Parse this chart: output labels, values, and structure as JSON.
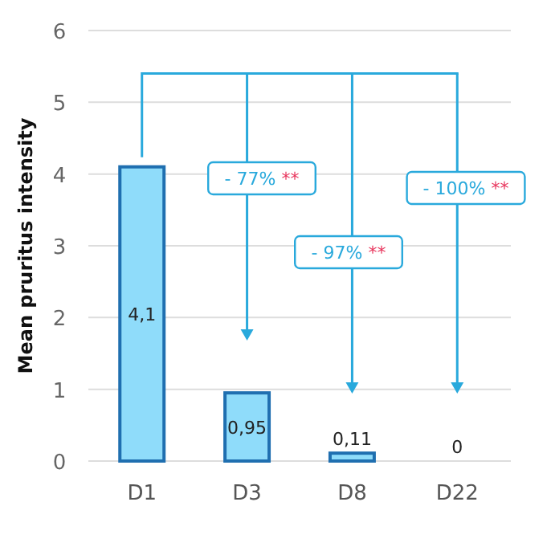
{
  "chart_data": {
    "type": "bar",
    "ylabel": "Mean pruritus intensity",
    "categories": [
      "D1",
      "D3",
      "D8",
      "D22"
    ],
    "values": [
      4.1,
      0.95,
      0.11,
      0
    ],
    "color": "#8fdcfa",
    "value_labels": [
      "4,1",
      "0,95",
      "0,11",
      "0"
    ],
    "ylim": [
      0,
      6
    ],
    "yticks": [
      0,
      1,
      2,
      3,
      4,
      5,
      6
    ],
    "grid": "y",
    "annotations": [
      "- 77% **",
      "- 97% **",
      "- 100% **"
    ]
  }
}
